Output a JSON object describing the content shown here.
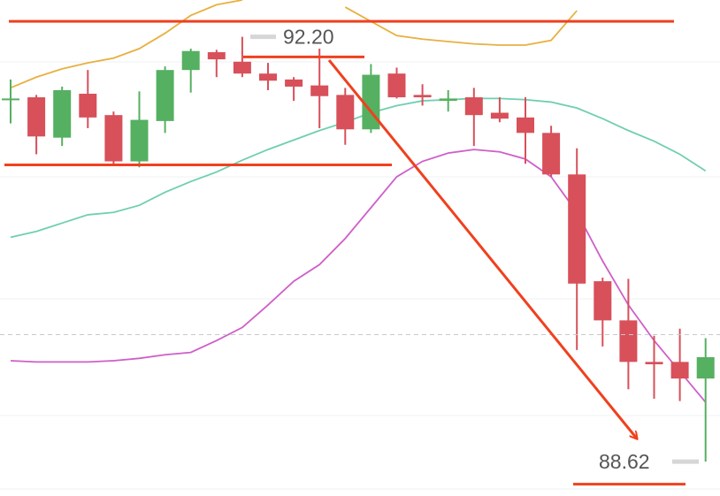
{
  "chart_data": {
    "type": "candlestick",
    "categories": [
      null,
      null,
      null,
      null,
      null,
      null,
      null,
      null,
      null,
      null,
      null,
      null,
      null,
      null,
      null,
      null,
      null,
      null,
      null,
      null,
      null,
      null,
      null,
      null,
      null,
      null,
      null,
      null
    ],
    "open": [
      91.67,
      91.69,
      91.35,
      91.72,
      91.54,
      91.15,
      91.49,
      91.92,
      92.07,
      91.99,
      91.89,
      91.84,
      91.79,
      91.71,
      91.42,
      91.89,
      91.71,
      91.66,
      91.69,
      91.56,
      91.52,
      91.39,
      91.04,
      90.14,
      89.81,
      89.46,
      89.46,
      89.32
    ],
    "high": [
      91.84,
      91.71,
      91.78,
      91.92,
      91.57,
      91.74,
      91.95,
      92.1,
      92.09,
      92.2,
      91.98,
      91.86,
      92.1,
      91.77,
      91.97,
      91.94,
      91.8,
      91.75,
      91.77,
      91.69,
      91.69,
      91.45,
      91.26,
      90.17,
      90.16,
      89.68,
      89.74,
      89.66
    ],
    "low": [
      91.47,
      91.21,
      91.28,
      91.43,
      91.12,
      91.1,
      91.39,
      91.73,
      91.86,
      91.86,
      91.75,
      91.66,
      91.43,
      91.29,
      91.39,
      91.68,
      91.62,
      91.57,
      91.28,
      91.48,
      91.13,
      91.02,
      89.56,
      89.59,
      89.23,
      89.15,
      89.13,
      88.62
    ],
    "close": [
      91.68,
      91.36,
      91.75,
      91.52,
      91.15,
      91.5,
      91.92,
      92.08,
      92.01,
      91.89,
      91.83,
      91.78,
      91.7,
      91.42,
      91.88,
      91.69,
      91.69,
      91.68,
      91.54,
      91.51,
      91.39,
      91.04,
      90.12,
      89.81,
      89.46,
      89.44,
      89.32,
      89.5
    ],
    "up_color": "#55b061",
    "down_color": "#d7505a",
    "lines": [
      {
        "color": "#e8b040",
        "values": [
          91.77,
          91.86,
          91.93,
          91.98,
          92.02,
          92.1,
          92.23,
          92.38,
          92.47,
          92.51,
          null,
          null,
          null,
          92.45,
          92.33,
          92.21,
          92.18,
          92.16,
          92.14,
          92.13,
          92.13,
          92.17,
          92.42,
          null,
          null,
          null,
          null,
          null
        ]
      },
      {
        "color": "#6fcfb0",
        "values": [
          90.51,
          90.56,
          90.63,
          90.7,
          90.72,
          90.78,
          90.89,
          90.98,
          91.06,
          91.16,
          91.25,
          91.33,
          91.41,
          91.48,
          91.56,
          91.62,
          91.66,
          91.67,
          91.68,
          91.68,
          91.67,
          91.65,
          91.6,
          91.51,
          91.41,
          91.32,
          91.21,
          91.07
        ]
      },
      {
        "color": "#cf5fc8",
        "values": [
          89.47,
          89.46,
          89.46,
          89.46,
          89.47,
          89.49,
          89.52,
          89.54,
          89.64,
          89.75,
          89.94,
          90.14,
          90.28,
          90.5,
          90.76,
          91.02,
          91.15,
          91.22,
          91.25,
          91.23,
          91.17,
          91.02,
          90.72,
          90.31,
          89.94,
          89.64,
          89.38,
          89.12
        ]
      }
    ],
    "levels": [
      92.33,
      92.03,
      91.12,
      88.43
    ],
    "level_color": "#f0401e",
    "current_price": 89.69,
    "annotations": [
      {
        "value": 92.2,
        "label": "92.20"
      },
      {
        "value": 88.62,
        "label": "88.62"
      }
    ],
    "ylim": [
      88.33,
      92.51
    ]
  }
}
